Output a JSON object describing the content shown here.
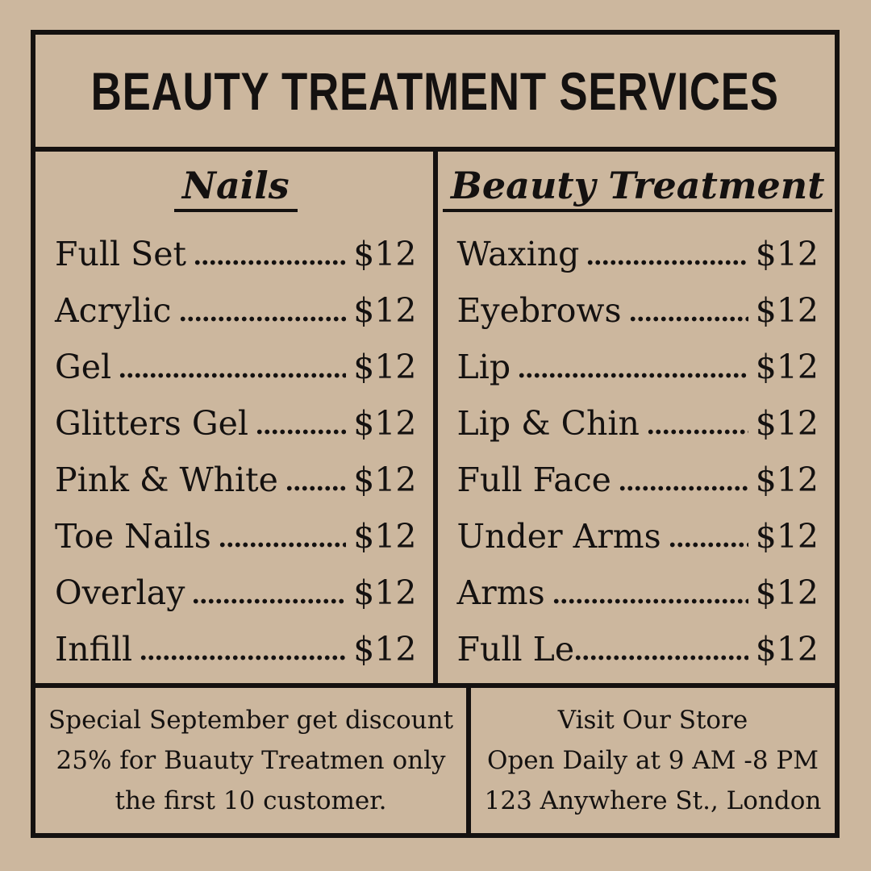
{
  "title": "BEAUTY TREATMENT SERVICES",
  "columns": [
    {
      "heading": "Nails",
      "items": [
        {
          "label": "Full Set",
          "price": "$12"
        },
        {
          "label": "Acrylic",
          "price": "$12"
        },
        {
          "label": "Gel",
          "price": "$12"
        },
        {
          "label": "Glitters Gel",
          "price": "$12"
        },
        {
          "label": "Pink & White",
          "price": "$12"
        },
        {
          "label": "Toe Nails",
          "price": "$12"
        },
        {
          "label": "Overlay",
          "price": "$12"
        },
        {
          "label": "Infill",
          "price": "$12"
        }
      ]
    },
    {
      "heading": "Beauty Treatment",
      "items": [
        {
          "label": "Waxing",
          "price": "$12"
        },
        {
          "label": "Eyebrows",
          "price": "$12"
        },
        {
          "label": "Lip",
          "price": "$12"
        },
        {
          "label": "Lip & Chin",
          "price": "$12"
        },
        {
          "label": "Full Face",
          "price": "$12"
        },
        {
          "label": "Under Arms",
          "price": "$12"
        },
        {
          "label": "Arms",
          "price": "$12"
        },
        {
          "label": "Full Le",
          "price": "$12",
          "attached_leader": true
        }
      ]
    }
  ],
  "footer": {
    "promo_lines": [
      "Special September get discount",
      "25% for Buauty Treatmen only",
      "the first 10 customer."
    ],
    "store_lines": [
      "Visit Our Store",
      "Open Daily at 9 AM -8 PM",
      "123 Anywhere St., London"
    ]
  },
  "colors": {
    "background": "#ccb79e",
    "ink": "#141110"
  }
}
